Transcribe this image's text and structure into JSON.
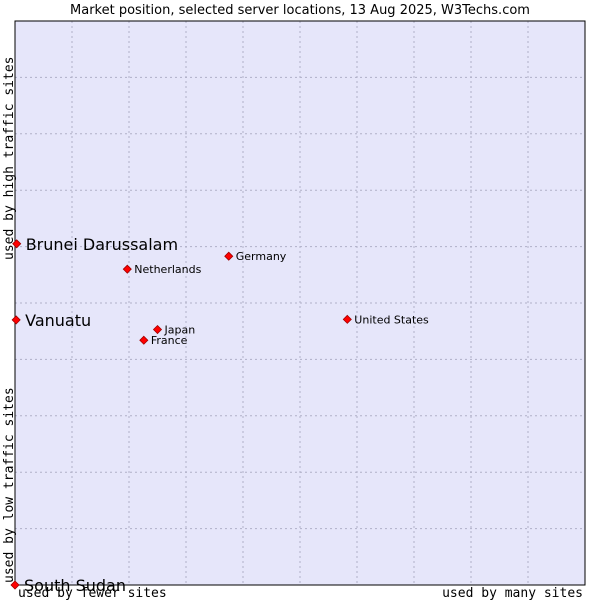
{
  "chart_data": {
    "type": "scatter",
    "title": "Market position, selected server locations, 13 Aug 2025, W3Techs.com",
    "xlabel_left": "used by fewer sites",
    "xlabel_right": "used by many sites",
    "ylabel_bottom": "used by low traffic sites",
    "ylabel_top": "used by high traffic sites",
    "grid": true,
    "xlim": [
      0,
      100
    ],
    "ylim": [
      0,
      100
    ],
    "colors": {
      "plot_bg": "#e6e6fa",
      "grid": "#b0b0c8",
      "border": "#000000",
      "marker": "#ff0000",
      "marker_edge": "#a00000"
    },
    "points": [
      {
        "name": "Brunei Darussalam",
        "x": 0.3,
        "y": 60.5,
        "highlight": true
      },
      {
        "name": "Vanuatu",
        "x": 0.2,
        "y": 47.0,
        "highlight": true
      },
      {
        "name": "South Sudan",
        "x": 0.0,
        "y": 0.0,
        "highlight": true
      },
      {
        "name": "Germany",
        "x": 37.5,
        "y": 58.3,
        "highlight": false
      },
      {
        "name": "Netherlands",
        "x": 19.7,
        "y": 56.0,
        "highlight": false
      },
      {
        "name": "United States",
        "x": 58.3,
        "y": 47.1,
        "highlight": false
      },
      {
        "name": "Japan",
        "x": 25.0,
        "y": 45.3,
        "highlight": false
      },
      {
        "name": "France",
        "x": 22.6,
        "y": 43.4,
        "highlight": false
      }
    ]
  }
}
